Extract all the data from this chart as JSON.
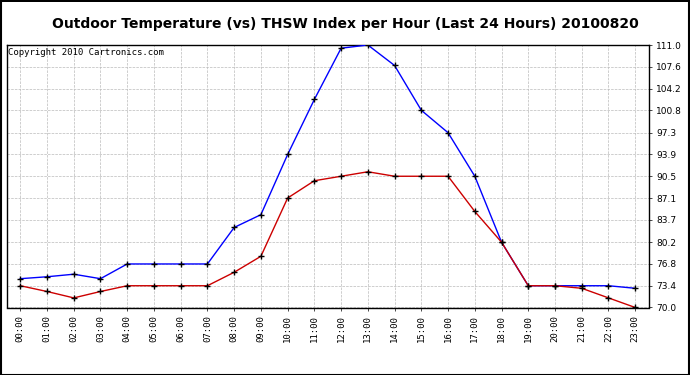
{
  "title": "Outdoor Temperature (vs) THSW Index per Hour (Last 24 Hours) 20100820",
  "copyright": "Copyright 2010 Cartronics.com",
  "hours": [
    "00:00",
    "01:00",
    "02:00",
    "03:00",
    "04:00",
    "05:00",
    "06:00",
    "07:00",
    "08:00",
    "09:00",
    "10:00",
    "11:00",
    "12:00",
    "13:00",
    "14:00",
    "15:00",
    "16:00",
    "17:00",
    "18:00",
    "19:00",
    "20:00",
    "21:00",
    "22:00",
    "23:00"
  ],
  "blue_data": [
    74.5,
    74.8,
    75.2,
    74.5,
    76.8,
    76.8,
    76.8,
    76.8,
    82.5,
    84.5,
    93.9,
    102.5,
    110.5,
    111.0,
    107.8,
    100.8,
    97.3,
    90.5,
    80.2,
    73.4,
    73.4,
    73.4,
    73.4,
    73.0
  ],
  "red_data": [
    73.4,
    72.5,
    71.5,
    72.5,
    73.4,
    73.4,
    73.4,
    73.4,
    75.5,
    78.0,
    87.1,
    89.8,
    90.5,
    91.2,
    90.5,
    90.5,
    90.5,
    85.0,
    80.2,
    73.4,
    73.4,
    73.0,
    71.5,
    70.0
  ],
  "blue_color": "#0000ff",
  "red_color": "#cc0000",
  "bg_color": "#ffffff",
  "grid_color": "#bbbbbb",
  "ylim": [
    70.0,
    111.0
  ],
  "yticks": [
    70.0,
    73.4,
    76.8,
    80.2,
    83.7,
    87.1,
    90.5,
    93.9,
    97.3,
    100.8,
    104.2,
    107.6,
    111.0
  ],
  "title_fontsize": 10,
  "copyright_fontsize": 6.5,
  "tick_fontsize": 6.5,
  "xlabel_fontsize": 6.5
}
